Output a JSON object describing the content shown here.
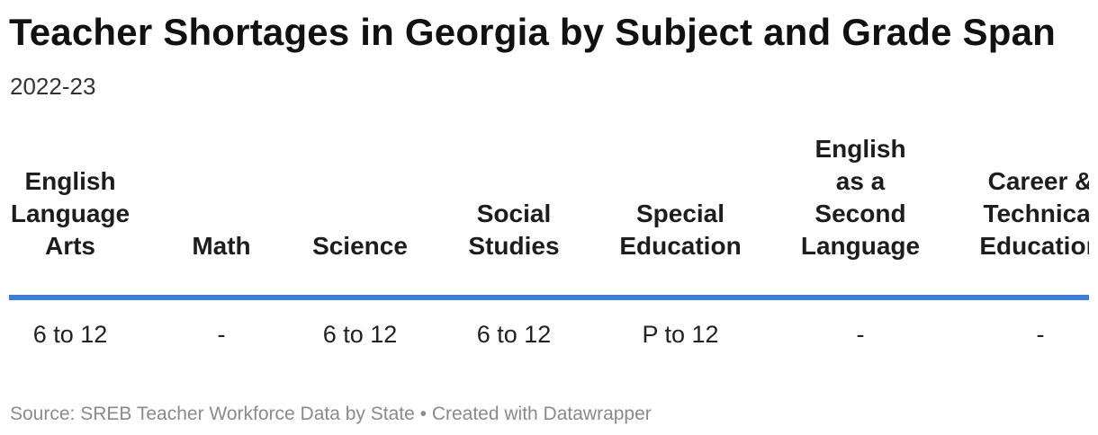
{
  "title": "Teacher Shortages in Georgia by Subject and Grade Span",
  "subtitle": "2022-23",
  "chart_data": {
    "type": "table",
    "columns": [
      "English\nLanguage\nArts",
      "Math",
      "Science",
      "Social\nStudies",
      "Special\nEducation",
      "English\nas a\nSecond\nLanguage",
      "Career &\nTechnical\nEducation"
    ],
    "rows": [
      [
        "6 to 12",
        "-",
        "6 to 12",
        "6 to 12",
        "P to 12",
        "-",
        "-"
      ]
    ]
  },
  "footer": {
    "source_label": "Source:",
    "source": "SREB Teacher Workforce Data by State",
    "separator": "•",
    "credit": "Created with Datawrapper"
  },
  "colors": {
    "header_rule": "#3c7fd4",
    "title": "#111111",
    "footer": "#8a8a8a"
  }
}
